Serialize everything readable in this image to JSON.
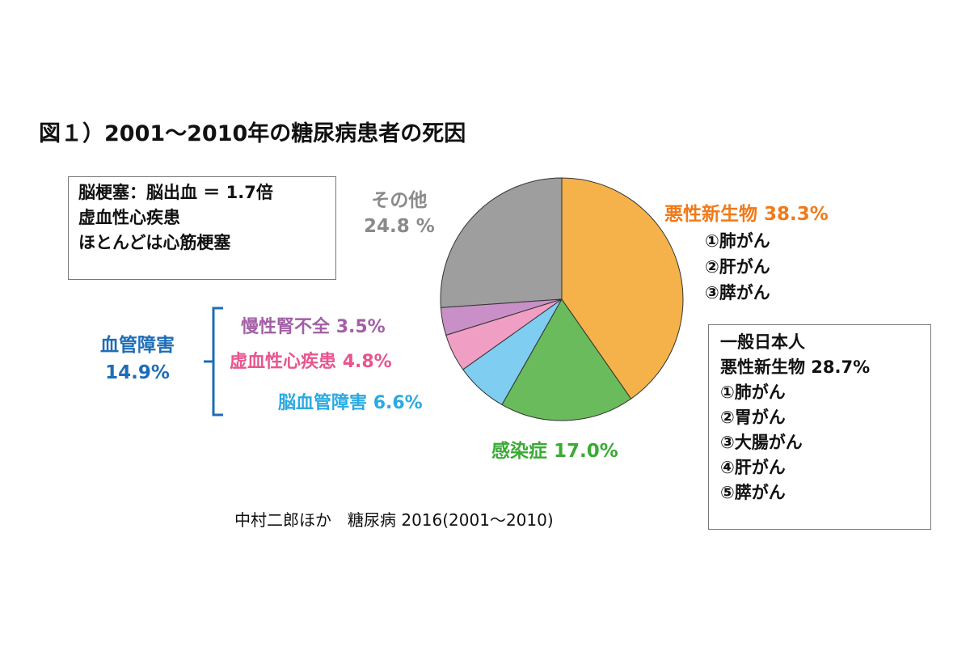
{
  "chart_data": {
    "type": "pie",
    "title": "図１）2001～2010年の糖尿病患者の死因",
    "start_angle": "top",
    "direction": "clockwise",
    "slices": [
      {
        "label": "悪性新生物",
        "value": 38.3,
        "value_label": "38.3%",
        "color": "#F5B24A",
        "text_color": "#F07A1A"
      },
      {
        "label": "感染症",
        "value": 17.0,
        "value_label": "17.0%",
        "color": "#6ABB5B",
        "text_color": "#3AAA35"
      },
      {
        "label": "脳血管障害",
        "value": 6.6,
        "value_label": "6.6%",
        "color": "#7FCDF0",
        "text_color": "#2AAAE2"
      },
      {
        "label": "虚血性心疾患",
        "value": 4.8,
        "value_label": "4.8%",
        "color": "#F09EC4",
        "text_color": "#E8558E"
      },
      {
        "label": "慢性腎不全",
        "value": 3.5,
        "value_label": "3.5%",
        "color": "#C890C6",
        "text_color": "#A25FA6"
      },
      {
        "label": "その他",
        "value": 24.8,
        "value_label": "24.8 %",
        "color": "#9E9E9E",
        "text_color": "#8A8A8A"
      }
    ],
    "group": {
      "label": "血管障害",
      "value_label": "14.9%",
      "color": "#1E6DB6"
    },
    "malignant_sublist": [
      "①肺がん",
      "②肝がん",
      "③膵がん"
    ],
    "note_box": [
      "脳梗塞：脳出血 ＝ 1.7倍",
      "虚血性心疾患",
      "ほとんどは心筋梗塞"
    ],
    "general_box": [
      "一般日本人",
      "悪性新生物 28.7%",
      "①肺がん",
      "②胃がん",
      "③大腸がん",
      "④肝がん",
      "⑤膵がん"
    ],
    "source": "中村二郎ほか　糖尿病 2016(2001～2010)"
  }
}
